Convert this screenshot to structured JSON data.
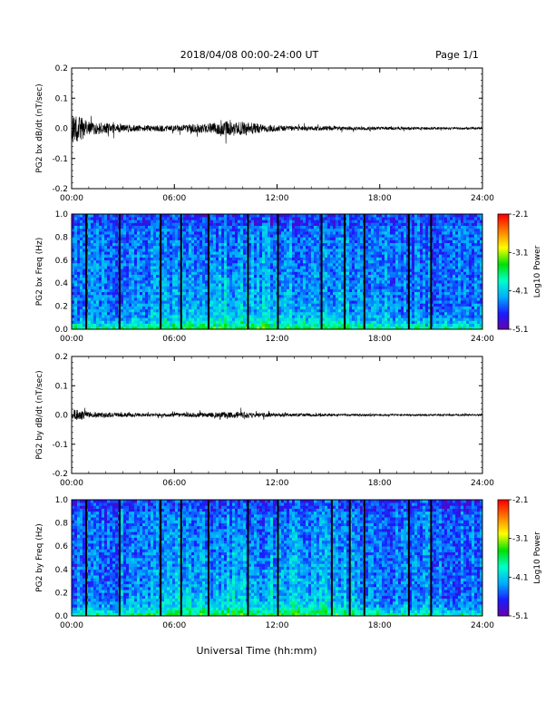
{
  "header": {
    "date_range": "2018/04/08  00:00-24:00 UT",
    "page": "Page 1/1"
  },
  "footer": {
    "xlabel": "Universal Time (hh:mm)"
  },
  "colors": {
    "trace": "#000000",
    "colormap": [
      "#6a00a8",
      "#1a1aff",
      "#00aaff",
      "#00ffcc",
      "#00e000",
      "#ffff00",
      "#ff8000",
      "#ff0000"
    ]
  },
  "chart_data": [
    {
      "type": "line",
      "id": "bx-dbdt",
      "ylabel": "PG2 bx dB/dt (nT/sec)",
      "ylim": [
        -0.2,
        0.2
      ],
      "yticks": [
        "0.2",
        "0.1",
        "0.0",
        "-0.1",
        "-0.2"
      ],
      "xticks": [
        "00:00",
        "06:00",
        "12:00",
        "18:00",
        "24:00"
      ],
      "xlim": [
        0,
        24
      ],
      "series": [
        {
          "x": [
            0,
            0.5,
            1,
            1.5,
            2,
            2.5,
            3,
            3.5,
            4,
            4.5,
            5,
            5.5,
            6,
            6.5,
            7,
            7.5,
            8,
            8.5,
            9,
            9.5,
            10,
            10.5,
            11,
            11.5,
            12,
            13,
            14,
            15,
            16,
            17,
            18,
            19,
            20,
            21,
            22,
            23,
            24
          ],
          "amplitude": [
            0.05,
            0.04,
            0.025,
            0.02,
            0.018,
            0.015,
            0.012,
            0.012,
            0.01,
            0.01,
            0.01,
            0.01,
            0.01,
            0.012,
            0.015,
            0.015,
            0.015,
            0.02,
            0.025,
            0.02,
            0.025,
            0.02,
            0.015,
            0.012,
            0.01,
            0.008,
            0.008,
            0.007,
            0.006,
            0.006,
            0.005,
            0.005,
            0.005,
            0.004,
            0.004,
            0.004,
            0.004
          ]
        }
      ]
    },
    {
      "type": "heatmap",
      "id": "bx-spec",
      "ylabel": "PG2 bx Freq (Hz)",
      "ylim": [
        0.0,
        1.0
      ],
      "yticks": [
        "1.0",
        "0.8",
        "0.6",
        "0.4",
        "0.2",
        "0.0"
      ],
      "xticks": [
        "00:00",
        "06:00",
        "12:00",
        "18:00",
        "24:00"
      ],
      "xlim": [
        0,
        24
      ],
      "colorbar": {
        "label": "Log10 Power",
        "ticks": [
          "-2.1",
          "-3.1",
          "-4.1",
          "-5.1"
        ],
        "range": [
          -5.1,
          -2.1
        ]
      },
      "gap_lines_hours": [
        0.85,
        2.8,
        5.2,
        6.4,
        8.0,
        10.3,
        12.05,
        14.6,
        15.95,
        17.1,
        19.7,
        21.0
      ]
    },
    {
      "type": "line",
      "id": "by-dbdt",
      "ylabel": "PG2 by dB/dt (nT/sec)",
      "ylim": [
        -0.2,
        0.2
      ],
      "yticks": [
        "0.2",
        "0.1",
        "0.0",
        "-0.1",
        "-0.2"
      ],
      "xticks": [
        "00:00",
        "06:00",
        "12:00",
        "18:00",
        "24:00"
      ],
      "xlim": [
        0,
        24
      ],
      "series": [
        {
          "x": [
            0,
            0.5,
            1,
            1.5,
            2,
            2.5,
            3,
            3.5,
            4,
            4.5,
            5,
            5.5,
            6,
            6.5,
            7,
            7.5,
            8,
            8.5,
            9,
            9.5,
            10,
            10.5,
            11,
            11.5,
            12,
            13,
            14,
            15,
            16,
            17,
            18,
            19,
            20,
            21,
            22,
            23,
            24
          ],
          "amplitude": [
            0.02,
            0.018,
            0.012,
            0.01,
            0.008,
            0.008,
            0.007,
            0.007,
            0.006,
            0.006,
            0.006,
            0.006,
            0.006,
            0.007,
            0.008,
            0.008,
            0.008,
            0.009,
            0.01,
            0.01,
            0.012,
            0.01,
            0.008,
            0.007,
            0.006,
            0.005,
            0.005,
            0.004,
            0.004,
            0.004,
            0.003,
            0.003,
            0.003,
            0.003,
            0.003,
            0.003,
            0.003
          ]
        }
      ]
    },
    {
      "type": "heatmap",
      "id": "by-spec",
      "ylabel": "PG2 by Freq (Hz)",
      "ylim": [
        0.0,
        1.0
      ],
      "yticks": [
        "1.0",
        "0.8",
        "0.6",
        "0.4",
        "0.2",
        "0.0"
      ],
      "xticks": [
        "00:00",
        "06:00",
        "12:00",
        "18:00",
        "24:00"
      ],
      "xlim": [
        0,
        24
      ],
      "colorbar": {
        "label": "Log10 Power",
        "ticks": [
          "-2.1",
          "-3.1",
          "-4.1",
          "-5.1"
        ],
        "range": [
          -5.1,
          -2.1
        ]
      },
      "gap_lines_hours": [
        0.85,
        2.8,
        5.2,
        6.4,
        8.0,
        10.3,
        12.05,
        15.2,
        16.25,
        17.1,
        19.7,
        21.0
      ]
    }
  ]
}
